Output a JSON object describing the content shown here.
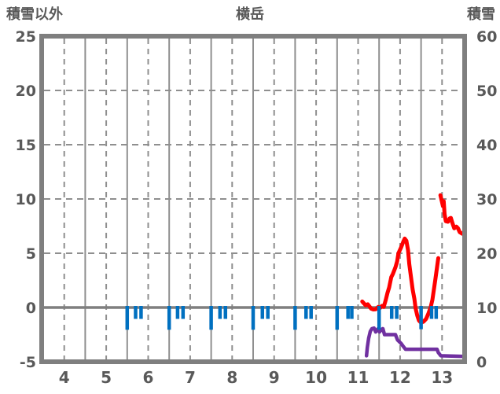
{
  "header": {
    "left_axis_title": "積雪以外",
    "title": "横岳",
    "right_axis_title": "積雪"
  },
  "colors": {
    "frame": "#7f7f7f",
    "grid": "#8f8f8f",
    "zero_line": "#7f7f7f",
    "text": "#595959",
    "snow_line": "#ff0000",
    "purple_line": "#7030a0",
    "blue_tick": "#0070c0",
    "background": "#ffffff"
  },
  "chart_data": {
    "type": "line",
    "title": "横岳",
    "left_axis": {
      "label": "積雪以外",
      "ticks": [
        25,
        20,
        15,
        10,
        5,
        0,
        -5
      ],
      "range": [
        -5,
        25
      ]
    },
    "right_axis": {
      "label": "積雪",
      "ticks": [
        60,
        50,
        40,
        30,
        20,
        10,
        0
      ],
      "range": [
        0,
        60
      ]
    },
    "x_axis": {
      "ticks": [
        4,
        5,
        6,
        7,
        8,
        9,
        10,
        11,
        12,
        13
      ],
      "range": [
        4,
        14
      ],
      "tick_position": "interval-center"
    },
    "grid": {
      "h_dashed_at_left_values": [
        20,
        15,
        10,
        5
      ],
      "v_solid_at_months": [
        5,
        6,
        7,
        8,
        9,
        10,
        11,
        12,
        13
      ],
      "v_dashed_at_months": [
        4.5,
        5.5,
        6.5,
        7.5,
        8.5,
        9.5,
        10.5,
        11.5,
        12.5,
        13.5
      ],
      "zero_line_left_value": 0
    },
    "series": [
      {
        "name": "red-line",
        "color": "#ff0000",
        "axis": "left",
        "width": 5,
        "segments": [
          [
            [
              11.6,
              0.55
            ],
            [
              11.68,
              0.2
            ],
            [
              11.73,
              0.3
            ],
            [
              11.81,
              -0.1
            ],
            [
              11.86,
              -0.18
            ],
            [
              11.92,
              -0.16
            ],
            [
              11.98,
              0.05
            ],
            [
              12.02,
              -0.05
            ],
            [
              12.07,
              0.15
            ],
            [
              12.11,
              0.05
            ],
            [
              12.16,
              0.7
            ],
            [
              12.2,
              1.35
            ],
            [
              12.24,
              1.85
            ],
            [
              12.29,
              2.8
            ],
            [
              12.33,
              3.1
            ],
            [
              12.39,
              3.7
            ],
            [
              12.43,
              4.25
            ],
            [
              12.46,
              5.0
            ],
            [
              12.52,
              5.5
            ],
            [
              12.58,
              6.1
            ],
            [
              12.61,
              6.35
            ],
            [
              12.65,
              6.15
            ],
            [
              12.69,
              5.3
            ],
            [
              12.72,
              4.0
            ],
            [
              12.76,
              2.8
            ],
            [
              12.8,
              1.65
            ],
            [
              12.84,
              0.8
            ],
            [
              12.87,
              -0.1
            ],
            [
              12.91,
              -0.75
            ],
            [
              12.95,
              -1.2
            ],
            [
              13.0,
              -1.4
            ],
            [
              13.06,
              -1.3
            ],
            [
              13.12,
              -1.05
            ],
            [
              13.17,
              -0.6
            ],
            [
              13.23,
              0.05
            ],
            [
              13.27,
              0.7
            ],
            [
              13.3,
              1.5
            ],
            [
              13.34,
              2.6
            ],
            [
              13.38,
              3.7
            ],
            [
              13.41,
              4.55
            ]
          ],
          [
            [
              13.46,
              10.35
            ],
            [
              13.49,
              9.85
            ],
            [
              13.52,
              9.35
            ],
            [
              13.54,
              9.8
            ],
            [
              13.56,
              8.6
            ],
            [
              13.59,
              7.95
            ],
            [
              13.64,
              7.9
            ],
            [
              13.68,
              8.2
            ],
            [
              13.71,
              8.25
            ],
            [
              13.75,
              7.75
            ],
            [
              13.79,
              7.3
            ],
            [
              13.84,
              7.45
            ],
            [
              13.88,
              7.3
            ],
            [
              13.92,
              6.95
            ],
            [
              13.98,
              6.8
            ]
          ]
        ]
      },
      {
        "name": "purple-line",
        "color": "#7030a0",
        "axis": "left",
        "width": 4.5,
        "segments": [
          [
            [
              11.7,
              -4.45
            ],
            [
              11.72,
              -3.7
            ],
            [
              11.75,
              -2.85
            ],
            [
              11.79,
              -2.2
            ],
            [
              11.83,
              -1.95
            ],
            [
              11.88,
              -1.9
            ],
            [
              11.92,
              -2.25
            ],
            [
              11.97,
              -1.97
            ],
            [
              12.01,
              -2.25
            ],
            [
              12.05,
              -2.05
            ],
            [
              12.09,
              -1.95
            ],
            [
              12.13,
              -2.5
            ],
            [
              12.39,
              -2.5
            ],
            [
              12.44,
              -3.0
            ],
            [
              12.52,
              -3.3
            ],
            [
              12.57,
              -3.55
            ],
            [
              12.63,
              -3.85
            ],
            [
              13.38,
              -3.85
            ],
            [
              13.41,
              -4.15
            ],
            [
              13.47,
              -4.45
            ],
            [
              13.98,
              -4.5
            ]
          ]
        ]
      },
      {
        "name": "blue-ticks",
        "type": "bar",
        "color": "#0070c0",
        "axis": "left",
        "bar_width": 4.5,
        "bars": [
          {
            "x": 6.0,
            "v": -2.05
          },
          {
            "x": 6.2,
            "v": -1.05
          },
          {
            "x": 6.33,
            "v": -1.05
          },
          {
            "x": 7.0,
            "v": -2.05
          },
          {
            "x": 7.2,
            "v": -1.05
          },
          {
            "x": 7.33,
            "v": -1.05
          },
          {
            "x": 8.0,
            "v": -2.05
          },
          {
            "x": 8.21,
            "v": -1.05
          },
          {
            "x": 8.34,
            "v": -1.05
          },
          {
            "x": 9.0,
            "v": -2.05
          },
          {
            "x": 9.22,
            "v": -1.05
          },
          {
            "x": 9.35,
            "v": -1.05
          },
          {
            "x": 10.0,
            "v": -2.05
          },
          {
            "x": 10.26,
            "v": -1.05
          },
          {
            "x": 10.38,
            "v": -1.05
          },
          {
            "x": 11.0,
            "v": -2.05
          },
          {
            "x": 11.26,
            "v": -1.05
          },
          {
            "x": 11.35,
            "v": -1.05
          },
          {
            "x": 12.0,
            "v": -2.05
          },
          {
            "x": 12.3,
            "v": -1.05
          },
          {
            "x": 12.42,
            "v": -1.05
          },
          {
            "x": 13.0,
            "v": -2.0
          },
          {
            "x": 13.25,
            "v": -1.05
          },
          {
            "x": 13.36,
            "v": -1.05
          }
        ]
      }
    ]
  }
}
